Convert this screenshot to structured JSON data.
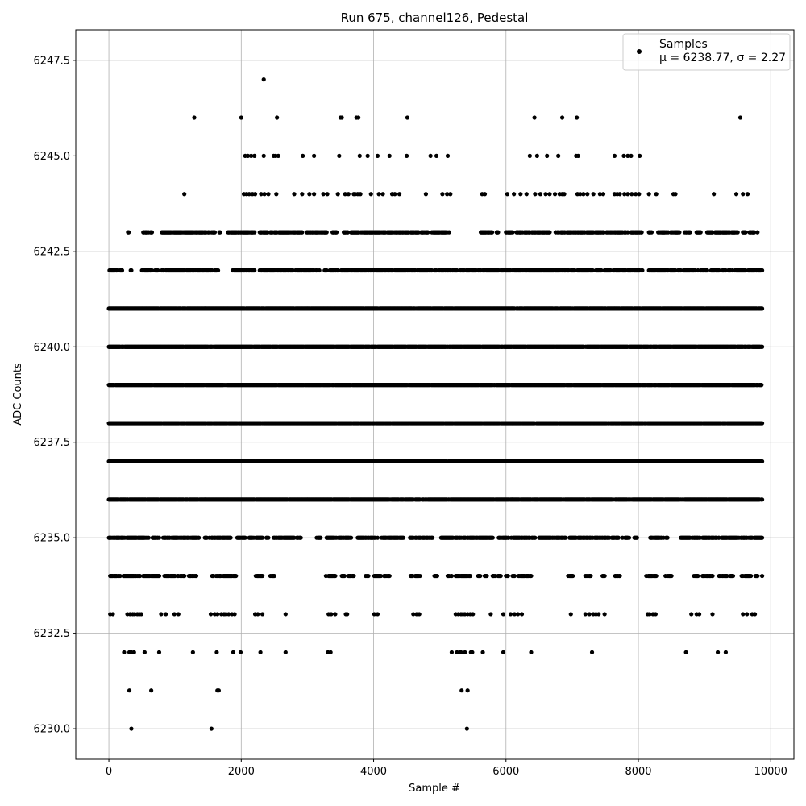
{
  "chart_data": {
    "type": "scatter",
    "title": "Run 675, channel126, Pedestal",
    "xlabel": "Sample #",
    "ylabel": "ADC Counts",
    "xlim": [
      -500,
      10350
    ],
    "ylim": [
      6229.2,
      6248.3
    ],
    "xticks": [
      0,
      2000,
      4000,
      6000,
      8000,
      10000
    ],
    "xtick_labels": [
      "0",
      "2000",
      "4000",
      "6000",
      "8000",
      "10000"
    ],
    "yticks": [
      6230.0,
      6232.5,
      6235.0,
      6237.5,
      6240.0,
      6242.5,
      6245.0,
      6247.5
    ],
    "ytick_labels": [
      "6230.0",
      "6232.5",
      "6235.0",
      "6237.5",
      "6240.0",
      "6242.5",
      "6245.0",
      "6247.5"
    ],
    "grid": true,
    "legend_position": "top-right",
    "marker_color": "#000000",
    "series": [
      {
        "name": "Samples",
        "label_line2": "μ = 6238.77, σ = 2.27",
        "n_samples": 9870,
        "mean": 6238.77,
        "std": 2.27,
        "bands": [
          {
            "y": 6247,
            "x": [
              2340
            ]
          },
          {
            "y": 6246,
            "x": [
              1290,
              2000,
              2540,
              3500,
              3520,
              3740,
              3770,
              4510,
              6430,
              6850,
              7070,
              9540
            ]
          },
          {
            "y": 6245,
            "x": [
              2060,
              2100,
              2150,
              2200,
              2340,
              2490,
              2520,
              2560,
              2930,
              3100,
              3480,
              3790,
              3910,
              4060,
              4240,
              4500,
              4860,
              4950,
              5120,
              6360,
              6470,
              6620,
              6790,
              7060,
              7090,
              7640,
              7780,
              7840,
              7890,
              8020
            ]
          },
          {
            "y": 6244,
            "x": [
              1140,
              2040,
              2080,
              2120,
              2170,
              2210,
              2300,
              2350,
              2410,
              2530,
              2800,
              2920,
              3030,
              3100,
              3240,
              3300,
              3460,
              3570,
              3620,
              3700,
              3720,
              3760,
              3800,
              3960,
              4080,
              4140,
              4280,
              4320,
              4390,
              4790,
              5040,
              5110,
              5160,
              5640,
              5680,
              6020,
              6120,
              6220,
              6310,
              6440,
              6520,
              6600,
              6660,
              6740,
              6810,
              6850,
              6880,
              7080,
              7120,
              7170,
              7230,
              7320,
              7420,
              7470,
              7640,
              7680,
              7720,
              7790,
              7840,
              7900,
              7960,
              8010,
              8160,
              8270,
              8530,
              8560,
              9140,
              9480,
              9580,
              9650
            ]
          },
          {
            "y": 6241,
            "x_ranges": [
              [
                0,
                9870
              ]
            ]
          },
          {
            "y": 6240,
            "x_ranges": [
              [
                0,
                9870
              ]
            ]
          },
          {
            "y": 6239,
            "x_ranges": [
              [
                0,
                9870
              ]
            ]
          },
          {
            "y": 6238,
            "x_ranges": [
              [
                0,
                9870
              ]
            ]
          },
          {
            "y": 6237,
            "x_ranges": [
              [
                0,
                9870
              ]
            ]
          },
          {
            "y": 6236,
            "x_ranges": [
              [
                0,
                9870
              ]
            ]
          },
          {
            "y": 6243,
            "x_ranges": [
              [
                290,
                300
              ],
              [
                520,
                650
              ],
              [
                800,
                1600
              ],
              [
                1660,
                1680
              ],
              [
                1800,
                2200
              ],
              [
                2280,
                2920
              ],
              [
                2980,
                3290
              ],
              [
                3380,
                3440
              ],
              [
                3540,
                3620
              ],
              [
                3660,
                4680
              ],
              [
                4720,
                4820
              ],
              [
                4870,
                5140
              ],
              [
                5620,
                5700
              ],
              [
                5720,
                5790
              ],
              [
                5860,
                5880
              ],
              [
                6000,
                6100
              ],
              [
                6160,
                6660
              ],
              [
                6750,
                6890
              ],
              [
                6920,
                7320
              ],
              [
                7350,
                7480
              ],
              [
                7500,
                7840
              ],
              [
                7880,
                8050
              ],
              [
                8160,
                8200
              ],
              [
                8300,
                8620
              ],
              [
                8700,
                8780
              ],
              [
                8880,
                8940
              ],
              [
                9040,
                9120
              ],
              [
                9160,
                9500
              ],
              [
                9580,
                9620
              ],
              [
                9680,
                9750
              ],
              [
                9800,
                9810
              ]
            ]
          },
          {
            "y": 6242,
            "x_ranges": [
              [
                0,
                140
              ],
              [
                160,
                200
              ],
              [
                320,
                340
              ],
              [
                500,
                660
              ],
              [
                700,
                740
              ],
              [
                800,
                1560
              ],
              [
                1600,
                1650
              ],
              [
                1860,
                2200
              ],
              [
                2280,
                3180
              ],
              [
                3260,
                3460
              ],
              [
                3500,
                3980
              ],
              [
                4000,
                5260
              ],
              [
                5300,
                5560
              ],
              [
                5580,
                6860
              ],
              [
                6880,
                7440
              ],
              [
                7480,
                7580
              ],
              [
                7620,
                8060
              ],
              [
                8160,
                8560
              ],
              [
                8600,
                8640
              ],
              [
                8680,
                8860
              ],
              [
                8900,
                9040
              ],
              [
                9100,
                9220
              ],
              [
                9260,
                9320
              ],
              [
                9360,
                9420
              ],
              [
                9460,
                9620
              ],
              [
                9660,
                9760
              ],
              [
                9780,
                9870
              ]
            ]
          },
          {
            "y": 6235,
            "x_ranges": [
              [
                0,
                600
              ],
              [
                660,
                760
              ],
              [
                820,
                1360
              ],
              [
                1440,
                1840
              ],
              [
                1940,
                2060
              ],
              [
                2120,
                2320
              ],
              [
                2380,
                2420
              ],
              [
                2480,
                2900
              ],
              [
                3140,
                3200
              ],
              [
                3260,
                3660
              ],
              [
                3760,
                4060
              ],
              [
                4120,
                4460
              ],
              [
                4540,
                4900
              ],
              [
                5020,
                5340
              ],
              [
                5360,
                5800
              ],
              [
                5880,
                6040
              ],
              [
                6080,
                6440
              ],
              [
                6500,
                6900
              ],
              [
                6960,
                7560
              ],
              [
                7600,
                7700
              ],
              [
                7760,
                7860
              ],
              [
                7940,
                7980
              ],
              [
                8180,
                8380
              ],
              [
                8420,
                8440
              ],
              [
                8640,
                8940
              ],
              [
                8960,
                9220
              ],
              [
                9260,
                9520
              ],
              [
                9540,
                9870
              ]
            ]
          },
          {
            "y": 6234,
            "x_ranges": [
              [
                0,
                200
              ],
              [
                220,
                480
              ],
              [
                520,
                760
              ],
              [
                840,
                1000
              ],
              [
                1040,
                1140
              ],
              [
                1200,
                1320
              ],
              [
                1540,
                1920
              ],
              [
                2220,
                2320
              ],
              [
                2440,
                2500
              ],
              [
                3280,
                3420
              ],
              [
                3520,
                3560
              ],
              [
                3620,
                3700
              ],
              [
                3880,
                3920
              ],
              [
                4000,
                4120
              ],
              [
                4160,
                4240
              ],
              [
                4560,
                4700
              ],
              [
                4920,
                4960
              ],
              [
                5120,
                5180
              ],
              [
                5240,
                5460
              ],
              [
                5580,
                5620
              ],
              [
                5680,
                5720
              ],
              [
                5800,
                5840
              ],
              [
                5880,
                5920
              ],
              [
                6000,
                6040
              ],
              [
                6100,
                6140
              ],
              [
                6180,
                6380
              ],
              [
                6940,
                7020
              ],
              [
                7200,
                7280
              ],
              [
                7460,
                7500
              ],
              [
                7640,
                7720
              ],
              [
                8120,
                8280
              ],
              [
                8400,
                8500
              ],
              [
                8840,
                8900
              ],
              [
                8960,
                9120
              ],
              [
                9220,
                9340
              ],
              [
                9380,
                9440
              ],
              [
                9560,
                9700
              ],
              [
                9760,
                9800
              ],
              [
                9850,
                9870
              ]
            ]
          },
          {
            "y": 6233,
            "x": [
              20,
              60,
              280,
              320,
              360,
              390,
              430,
              460,
              490,
              790,
              860,
              990,
              1050,
              1540,
              1600,
              1640,
              1700,
              1740,
              1770,
              1810,
              1860,
              1900,
              2210,
              2250,
              2320,
              2670,
              3320,
              3360,
              3420,
              3580,
              3600,
              4010,
              4060,
              4600,
              4650,
              4690,
              5240,
              5280,
              5320,
              5350,
              5380,
              5420,
              5460,
              5500,
              5770,
              5960,
              6070,
              6130,
              6180,
              6240,
              6980,
              7200,
              7260,
              7320,
              7360,
              7400,
              7490,
              8140,
              8170,
              8220,
              8260,
              8800,
              8880,
              8920,
              9120,
              9580,
              9640,
              9720,
              9760
            ]
          },
          {
            "y": 6232,
            "x": [
              230,
              310,
              340,
              380,
              540,
              760,
              1270,
              1630,
              1880,
              1990,
              2290,
              2670,
              3310,
              3350,
              5180,
              5260,
              5300,
              5320,
              5380,
              5470,
              5490,
              5650,
              5960,
              6380,
              7300,
              8720,
              9200,
              9320
            ]
          },
          {
            "y": 6231,
            "x": [
              310,
              640,
              1640,
              1660,
              5330,
              5420
            ]
          },
          {
            "y": 6230,
            "x": [
              340,
              1550,
              5410
            ]
          }
        ]
      }
    ]
  }
}
